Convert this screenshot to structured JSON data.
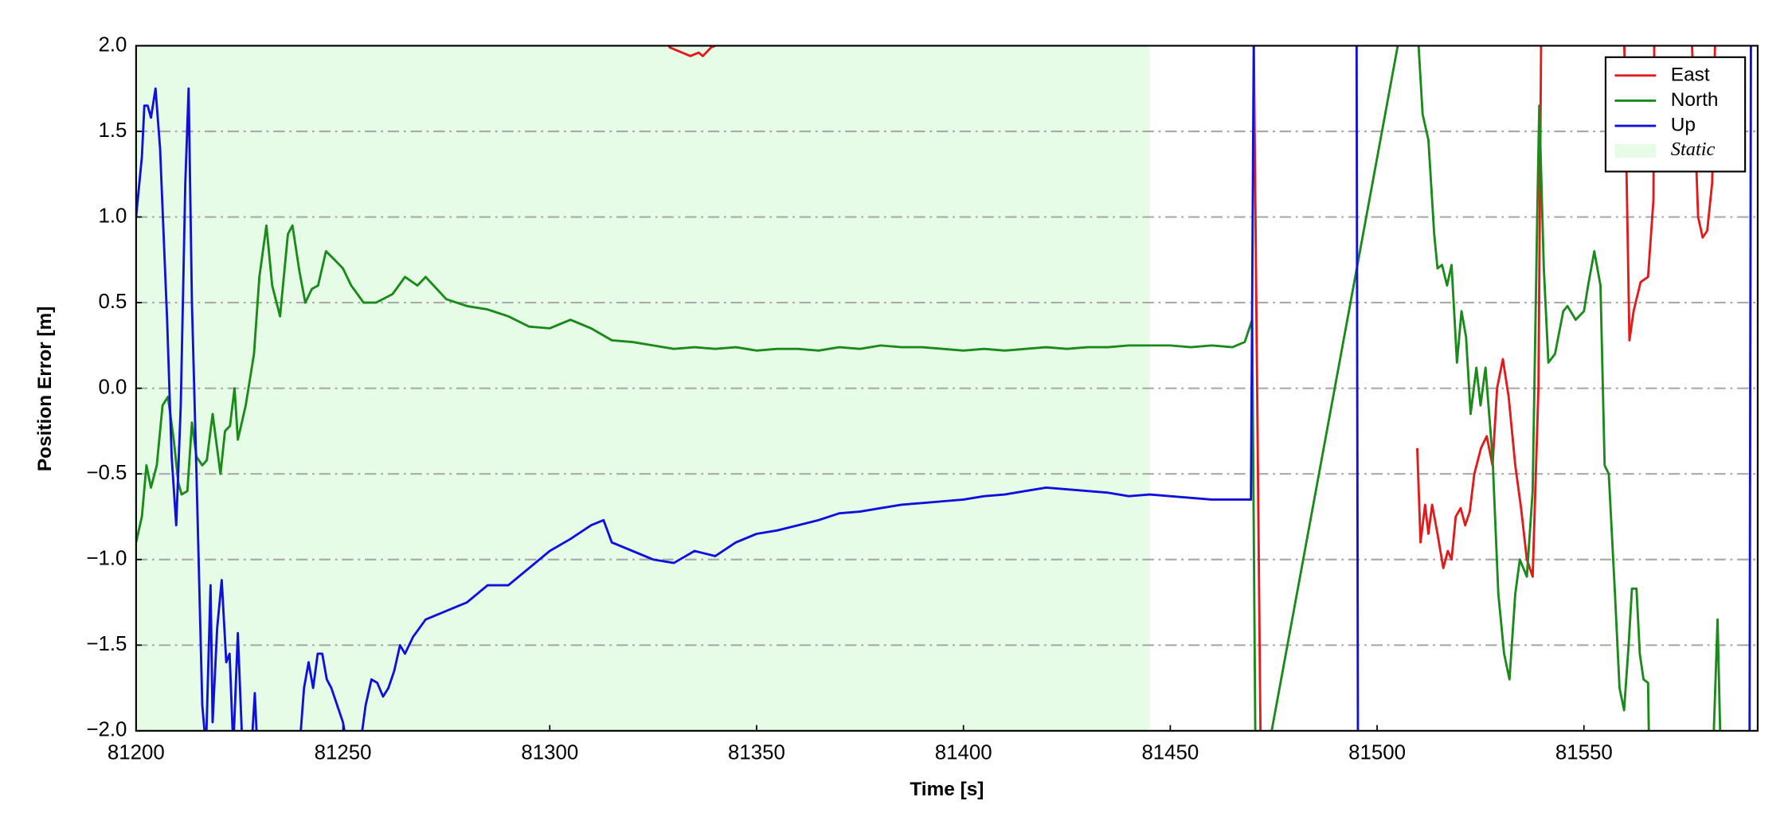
{
  "chart_data": {
    "type": "line",
    "xlabel": "Time [s]",
    "ylabel": "Position Error [m]",
    "xlim": [
      81200,
      81592
    ],
    "ylim": [
      -2,
      2
    ],
    "xticks": [
      81200,
      81250,
      81300,
      81350,
      81400,
      81450,
      81500,
      81550
    ],
    "yticks": [
      {
        "value": -2,
        "label": "−2.0"
      },
      {
        "value": -1.5,
        "label": "−1.5"
      },
      {
        "value": -1,
        "label": "−1.0"
      },
      {
        "value": -0.5,
        "label": "−0.5"
      },
      {
        "value": 0,
        "label": "0.0"
      },
      {
        "value": 0.5,
        "label": "0.5"
      },
      {
        "value": 1,
        "label": "1.0"
      },
      {
        "value": 1.5,
        "label": "1.5"
      },
      {
        "value": 2,
        "label": "2.0"
      }
    ],
    "grid": true,
    "legend": "upper right",
    "static": {
      "label": "Static",
      "xlim": [
        81200,
        81445
      ],
      "color": "#e6fce6"
    },
    "series": [
      {
        "name": "East",
        "color": "#e31a1c",
        "x": [
          81326,
          81327,
          81329,
          81332,
          81334,
          81336,
          81337,
          81339,
          81340,
          81341,
          81470,
          81472,
          81508.8,
          81509.7,
          81510.5,
          81511.6,
          81512.4,
          81513.3,
          81514.6,
          81516,
          81517.1,
          81518,
          81519,
          81520.2,
          81521.3,
          81522.4,
          81523.5,
          81525.1,
          81526.5,
          81527.9,
          81529,
          81530.4,
          81531.8,
          81533.4,
          81534.8,
          81536.2,
          81537.6,
          81539,
          81539.8,
          81559.4,
          81561,
          81562,
          81563.7,
          81565.5,
          81566.8,
          81567.1,
          81575.4,
          81577.6,
          81578.7,
          81579.8,
          81581,
          81582.1
        ],
        "values": [
          2.5,
          2.1,
          1.99,
          1.96,
          1.94,
          1.96,
          1.94,
          1.99,
          2.0,
          2.1,
          2.5,
          -2.5,
          null,
          -0.35,
          -0.9,
          -0.68,
          -0.85,
          -0.68,
          -0.85,
          -1.05,
          -0.95,
          -1.0,
          -0.75,
          -0.7,
          -0.8,
          -0.72,
          -0.5,
          -0.35,
          -0.28,
          -0.45,
          0.0,
          0.17,
          -0.05,
          -0.45,
          -0.7,
          -1.0,
          -1.1,
          0.0,
          2.5,
          2.5,
          0.28,
          0.45,
          0.62,
          0.65,
          1.1,
          2.5,
          2.5,
          1.0,
          0.88,
          0.92,
          1.2,
          2.5
        ]
      },
      {
        "name": "North",
        "color": "#1a8a1a",
        "x": [
          81200,
          81201.4,
          81202.5,
          81203.6,
          81205,
          81206.4,
          81207.7,
          81209.1,
          81210.2,
          81211,
          81212.4,
          81213.5,
          81214.6,
          81216,
          81217.1,
          81218.5,
          81220.4,
          81221.5,
          81222.7,
          81223.8,
          81224.6,
          81226.5,
          81228.5,
          81229.8,
          81231.5,
          81232.9,
          81234.8,
          81236.7,
          81237.8,
          81239.5,
          81240.9,
          81242.5,
          81244,
          81245.9,
          81248,
          81250,
          81252,
          81255,
          81258,
          81262,
          81265,
          81268,
          81270,
          81275,
          81280,
          81285,
          81290,
          81295,
          81300,
          81305,
          81310,
          81315,
          81320,
          81325,
          81330,
          81335,
          81340,
          81345,
          81350,
          81355,
          81360,
          81365,
          81370,
          81375,
          81380,
          81385,
          81390,
          81395,
          81400,
          81405,
          81410,
          81415,
          81420,
          81425,
          81430,
          81435,
          81440,
          81445,
          81450,
          81455,
          81460,
          81465,
          81468,
          81469.8,
          81470.7,
          81508.8,
          81511,
          81512.4,
          81513.8,
          81514.6,
          81515.7,
          81516.9,
          81518,
          81519.3,
          81520.4,
          81521.5,
          81522.6,
          81524,
          81525,
          81526.2,
          81527.9,
          81529.3,
          81530.7,
          81532,
          81533.4,
          81534.5,
          81536.2,
          81537.6,
          81538.7,
          81539.2,
          81540.3,
          81541.4,
          81543,
          81545,
          81546,
          81548,
          81550,
          81551,
          81552.5,
          81554,
          81555,
          81556,
          81557.5,
          81558.6,
          81559.7,
          81560.8,
          81561.6,
          81562.7,
          81563.5,
          81564.4,
          81565.5,
          81566,
          81580.7,
          81582.3,
          81583.4
        ],
        "values": [
          -0.9,
          -0.75,
          -0.45,
          -0.58,
          -0.45,
          -0.1,
          -0.05,
          -0.3,
          -0.55,
          -0.62,
          -0.6,
          -0.2,
          -0.4,
          -0.45,
          -0.42,
          -0.15,
          -0.5,
          -0.25,
          -0.22,
          0.0,
          -0.3,
          -0.1,
          0.2,
          0.65,
          0.95,
          0.6,
          0.42,
          0.9,
          0.95,
          0.68,
          0.5,
          0.58,
          0.6,
          0.8,
          0.75,
          0.7,
          0.6,
          0.5,
          0.5,
          0.55,
          0.65,
          0.6,
          0.65,
          0.52,
          0.48,
          0.46,
          0.42,
          0.36,
          0.35,
          0.4,
          0.35,
          0.28,
          0.27,
          0.25,
          0.23,
          0.24,
          0.23,
          0.24,
          0.22,
          0.23,
          0.23,
          0.22,
          0.24,
          0.23,
          0.25,
          0.24,
          0.24,
          0.23,
          0.22,
          0.23,
          0.22,
          0.23,
          0.24,
          0.23,
          0.24,
          0.24,
          0.25,
          0.25,
          0.25,
          0.24,
          0.25,
          0.24,
          0.27,
          0.4,
          -2.5,
          2.5,
          1.6,
          1.45,
          0.9,
          0.7,
          0.72,
          0.6,
          0.72,
          0.15,
          0.45,
          0.3,
          -0.15,
          0.12,
          -0.1,
          0.12,
          -0.4,
          -1.2,
          -1.55,
          -1.7,
          -1.2,
          -1.0,
          -1.1,
          -0.6,
          1.0,
          1.65,
          0.7,
          0.15,
          0.2,
          0.45,
          0.48,
          0.4,
          0.45,
          0.6,
          0.8,
          0.6,
          -0.45,
          -0.5,
          -1.2,
          -1.75,
          -1.88,
          -1.5,
          -1.17,
          -1.17,
          -1.55,
          -1.7,
          -1.72,
          -2.5,
          -2.5,
          -1.35,
          -2.5
        ]
      },
      {
        "name": "Up",
        "color": "#1010dd",
        "x": [
          81200,
          81201.4,
          81202,
          81202.8,
          81203.6,
          81204.7,
          81205.8,
          81207.5,
          81208.6,
          81209.7,
          81210.8,
          81211.9,
          81212.7,
          81213.5,
          81214.6,
          81216,
          81216.9,
          81218,
          81218.5,
          81219.6,
          81220.7,
          81221.8,
          81222.6,
          81223.5,
          81224.6,
          81225.7,
          81227.9,
          81228.7,
          81229.3,
          81239.5,
          81240.6,
          81241.7,
          81242.8,
          81243.9,
          81245,
          81246.1,
          81247.2,
          81248.6,
          81250,
          81251.1,
          81254.1,
          81255.5,
          81256.9,
          81258.3,
          81259.7,
          81261,
          81262.4,
          81263.8,
          81265,
          81267,
          81270,
          81275,
          81280,
          81285,
          81290,
          81295,
          81300,
          81305,
          81310,
          81313,
          81315,
          81320,
          81325,
          81330,
          81335,
          81340,
          81345,
          81350,
          81355,
          81360,
          81365,
          81370,
          81375,
          81380,
          81385,
          81390,
          81395,
          81400,
          81405,
          81410,
          81415,
          81420,
          81425,
          81430,
          81435,
          81440,
          81445,
          81450,
          81455,
          81460,
          81465,
          81469.5,
          81470.3,
          81495,
          81495.4,
          81590,
          81590.4
        ],
        "values": [
          1.0,
          1.35,
          1.65,
          1.65,
          1.58,
          1.75,
          1.4,
          0.4,
          -0.4,
          -0.8,
          -0.1,
          1.2,
          1.75,
          0.5,
          -0.5,
          -1.85,
          -2.1,
          -1.15,
          -1.95,
          -1.4,
          -1.12,
          -1.6,
          -1.55,
          -2.1,
          -1.43,
          -2.1,
          -2.1,
          -1.78,
          -2.1,
          -2.1,
          -1.75,
          -1.6,
          -1.75,
          -1.55,
          -1.55,
          -1.7,
          -1.75,
          -1.85,
          -1.95,
          -2.1,
          -2.1,
          -1.85,
          -1.7,
          -1.72,
          -1.8,
          -1.75,
          -1.65,
          -1.5,
          -1.55,
          -1.45,
          -1.35,
          -1.3,
          -1.25,
          -1.15,
          -1.15,
          -1.05,
          -0.95,
          -0.88,
          -0.8,
          -0.77,
          -0.9,
          -0.95,
          -1.0,
          -1.02,
          -0.95,
          -0.98,
          -0.9,
          -0.85,
          -0.83,
          -0.8,
          -0.77,
          -0.73,
          -0.72,
          -0.7,
          -0.68,
          -0.67,
          -0.66,
          -0.65,
          -0.63,
          -0.62,
          -0.6,
          -0.58,
          -0.59,
          -0.6,
          -0.61,
          -0.63,
          -0.62,
          -0.63,
          -0.64,
          -0.65,
          -0.65,
          -0.65,
          2.5,
          2.5,
          -2.5,
          -2.5,
          2.5
        ]
      }
    ]
  }
}
